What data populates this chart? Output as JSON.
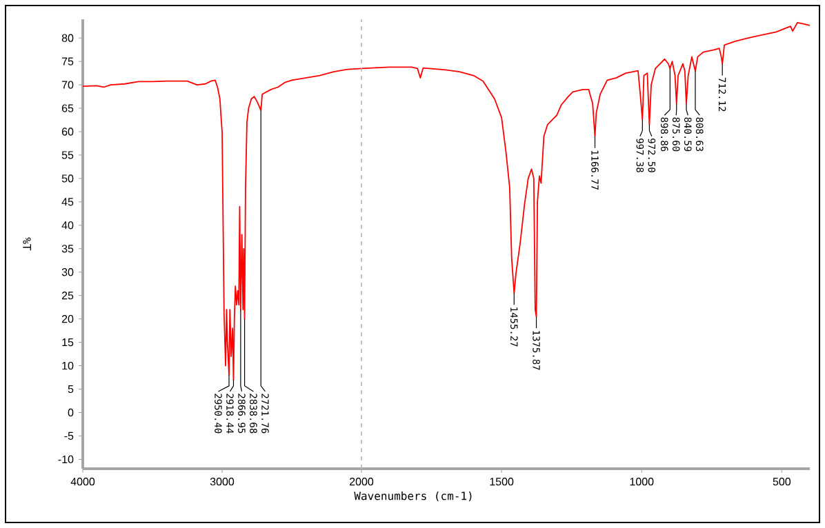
{
  "chart_data": [
    {
      "type": "line",
      "ylabel": "%T",
      "color": "#ff0000",
      "x": [
        4000,
        3900,
        3850,
        3800,
        3700,
        3600,
        3500,
        3400,
        3250,
        3180,
        3120,
        3080,
        3050,
        3033,
        3016,
        3005,
        3000,
        2992,
        2986,
        2975,
        2968,
        2962,
        2950.4,
        2944,
        2935,
        2925,
        2918.44,
        2912,
        2905,
        2896,
        2888,
        2880,
        2874,
        2866.95,
        2858,
        2850,
        2845,
        2838.68,
        2832,
        2822,
        2810,
        2790,
        2770,
        2750,
        2735,
        2721.76,
        2712,
        2650,
        2600,
        2550,
        2500,
        2400,
        2300,
        2200,
        2100,
        2000
      ],
      "values": [
        69.7,
        69.8,
        69.5,
        70.0,
        70.2,
        70.7,
        70.7,
        70.8,
        70.8,
        70.0,
        70.2,
        70.8,
        71.0,
        69.5,
        67,
        62,
        60,
        38,
        21,
        10,
        22,
        15,
        8,
        22,
        12,
        18,
        7,
        20,
        27,
        23,
        26,
        23,
        44,
        22,
        38,
        22,
        35,
        20,
        48,
        62,
        65,
        67,
        67.5,
        66.5,
        65.5,
        64.5,
        68,
        69,
        69.5,
        70.5,
        71,
        71.5,
        72,
        72.8,
        73.3,
        73.5
      ],
      "xlim": [
        4000,
        2000
      ],
      "ylim": [
        -12,
        84
      ],
      "xticks": [
        4000,
        3000,
        2000
      ],
      "yticks": [
        -10,
        -5,
        0,
        5,
        10,
        15,
        20,
        25,
        30,
        35,
        40,
        45,
        50,
        55,
        60,
        65,
        70,
        75,
        80
      ],
      "annotations": [
        {
          "text": "2950.40",
          "x": 2950.4,
          "y": 8
        },
        {
          "text": "2918.44",
          "x": 2918.44,
          "y": 7
        },
        {
          "text": "2866.95",
          "x": 2866.95,
          "y": 22
        },
        {
          "text": "2838.68",
          "x": 2838.68,
          "y": 20
        },
        {
          "text": "2721.76",
          "x": 2721.76,
          "y": 64.5
        }
      ]
    },
    {
      "type": "line",
      "xlabel": "Wavenumbers (cm-1)",
      "color": "#ff0000",
      "x": [
        2000,
        1900,
        1820,
        1800,
        1790,
        1780,
        1700,
        1650,
        1600,
        1566,
        1525,
        1500,
        1484,
        1471,
        1464,
        1455.27,
        1448,
        1434,
        1418,
        1405,
        1393,
        1385,
        1380,
        1375.87,
        1372,
        1365,
        1359,
        1349,
        1336,
        1320,
        1303,
        1287,
        1262,
        1246,
        1210,
        1189,
        1175,
        1166.77,
        1162,
        1148,
        1123,
        1090,
        1057,
        1013,
        1005,
        997.38,
        992,
        980,
        972.5,
        966,
        951,
        918,
        905,
        898.86,
        891,
        881,
        875.6,
        870,
        853,
        846,
        840.59,
        834,
        821,
        813,
        808.63,
        800,
        780,
        740,
        723,
        716,
        712.12,
        705,
        666,
        620,
        584,
        520,
        469,
        461,
        444,
        420,
        400
      ],
      "values": [
        73.5,
        73.8,
        73.8,
        73.5,
        71.5,
        73.6,
        73.2,
        72.8,
        72,
        70.8,
        67,
        63,
        55.5,
        48,
        33,
        25.5,
        30,
        36,
        44.5,
        50,
        52,
        50,
        22,
        20.5,
        45,
        50.5,
        49,
        59,
        61.5,
        62.5,
        63.5,
        65.7,
        67.5,
        68.5,
        69,
        69,
        66,
        59,
        64,
        68,
        71,
        71.5,
        72.5,
        73,
        68,
        62.5,
        72,
        72.5,
        61.5,
        70,
        73.5,
        75.5,
        74.5,
        73.5,
        75,
        72,
        66,
        72,
        74.5,
        73,
        66,
        72,
        76,
        74,
        73,
        76,
        77,
        77.5,
        77.8,
        76,
        74.5,
        78.5,
        79.3,
        80,
        80.5,
        81.3,
        82.5,
        81.5,
        83.3,
        83,
        82.7
      ],
      "xlim": [
        2000,
        400
      ],
      "ylim": [
        -12,
        84
      ],
      "xticks": [
        1500,
        1000,
        500
      ],
      "tick_labels": "x",
      "ref_lines": [
        {
          "axis": "x",
          "value": 2000,
          "color": "#b4b4b4",
          "line_style": "dashed"
        }
      ],
      "annotations": [
        {
          "text": "1455.27",
          "x": 1455.27,
          "y": 25.5
        },
        {
          "text": "1375.87",
          "x": 1375.87,
          "y": 20.5
        },
        {
          "text": "1166.77",
          "x": 1166.77,
          "y": 59
        },
        {
          "text": "997.38",
          "x": 997.38,
          "y": 62.5
        },
        {
          "text": "972.50",
          "x": 972.5,
          "y": 61.5
        },
        {
          "text": "898.86",
          "x": 898.86,
          "y": 73.5
        },
        {
          "text": "875.60",
          "x": 875.6,
          "y": 66
        },
        {
          "text": "840.59",
          "x": 840.59,
          "y": 66
        },
        {
          "text": "808.63",
          "x": 808.63,
          "y": 73
        },
        {
          "text": "712.12",
          "x": 712.12,
          "y": 74.5
        }
      ]
    }
  ]
}
